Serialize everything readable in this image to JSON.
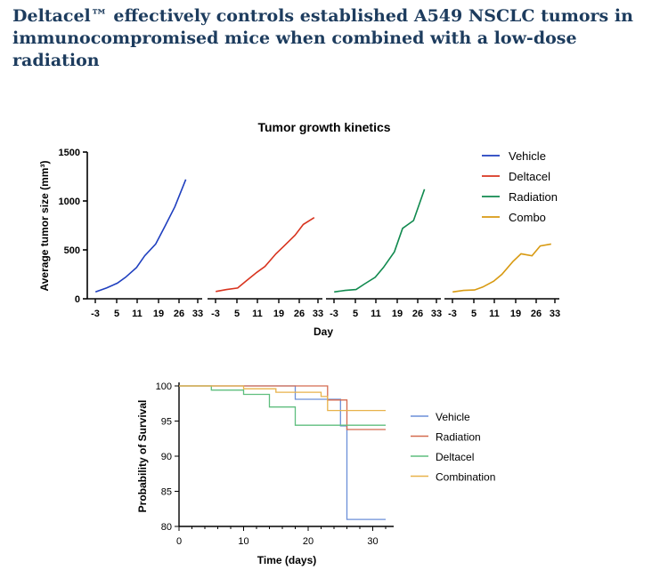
{
  "headline": "Deltacel™ effectively controls established A549 NSCLC tumors in immunocompromised mice when combined with a low-dose radiation",
  "chart_data": [
    {
      "type": "line",
      "title": "Tumor growth kinetics",
      "xlabel": "Day",
      "ylabel": "Average tumor size (mm³)",
      "ylim": [
        0,
        1500
      ],
      "yticks": [
        "0",
        "500",
        "1000",
        "1500"
      ],
      "xticks": [
        "-3",
        "5",
        "11",
        "19",
        "26",
        "33"
      ],
      "xrange": [
        -6,
        36
      ],
      "legend_position": "top-right",
      "series": [
        {
          "name": "Vehicle",
          "color": "#1f3fbf",
          "x": [
            -3,
            1,
            5,
            8,
            12,
            15,
            19,
            22,
            26,
            30
          ],
          "y": [
            70,
            110,
            160,
            220,
            320,
            440,
            560,
            720,
            940,
            1220
          ]
        },
        {
          "name": "Deltacel",
          "color": "#d8341f",
          "x": [
            -3,
            1,
            5,
            8,
            12,
            15,
            19,
            22,
            26,
            29,
            33
          ],
          "y": [
            75,
            95,
            110,
            180,
            270,
            330,
            460,
            540,
            650,
            760,
            830
          ]
        },
        {
          "name": "Radiation",
          "color": "#118a4f",
          "x": [
            -3,
            1,
            5,
            8,
            12,
            15,
            19,
            22,
            26,
            30
          ],
          "y": [
            70,
            85,
            95,
            150,
            220,
            320,
            480,
            720,
            800,
            1120
          ]
        },
        {
          "name": "Combo",
          "color": "#d89a12",
          "x": [
            -3,
            1,
            5,
            8,
            12,
            15,
            19,
            22,
            26,
            29,
            33
          ],
          "y": [
            70,
            85,
            90,
            120,
            180,
            250,
            380,
            460,
            440,
            540,
            560
          ]
        }
      ]
    },
    {
      "type": "line",
      "xlabel": "Time (days)",
      "ylabel": "Probability of Survival",
      "xlim": [
        0,
        32
      ],
      "ylim": [
        80,
        100
      ],
      "xticks": [
        "0",
        "10",
        "20",
        "30"
      ],
      "yticks": [
        "80",
        "85",
        "90",
        "95",
        "100"
      ],
      "legend_position": "right",
      "series": [
        {
          "name": "Vehicle",
          "color": "#6c8fd8",
          "x": [
            0,
            18,
            18,
            25,
            25,
            26,
            26,
            32
          ],
          "y": [
            100,
            100,
            98.1,
            98.1,
            94.3,
            94.3,
            81,
            81
          ]
        },
        {
          "name": "Radiation",
          "color": "#d46a4f",
          "x": [
            0,
            23,
            23,
            26,
            26,
            32
          ],
          "y": [
            100,
            100,
            98,
            98,
            93.8,
            93.8
          ]
        },
        {
          "name": "Deltacel",
          "color": "#5fbe7e",
          "x": [
            0,
            5,
            5,
            10,
            10,
            14,
            14,
            18,
            18,
            25,
            25,
            32
          ],
          "y": [
            100,
            100,
            99.4,
            99.4,
            98.8,
            98.8,
            97,
            97,
            94.4,
            94.4,
            94.4,
            94.4
          ]
        },
        {
          "name": "Combination",
          "color": "#e8b24a",
          "x": [
            0,
            10,
            10,
            15,
            15,
            22,
            22,
            23,
            23,
            32
          ],
          "y": [
            100,
            100,
            99.6,
            99.6,
            99.1,
            99.1,
            98.5,
            98.5,
            96.5,
            96.5
          ]
        }
      ]
    }
  ]
}
